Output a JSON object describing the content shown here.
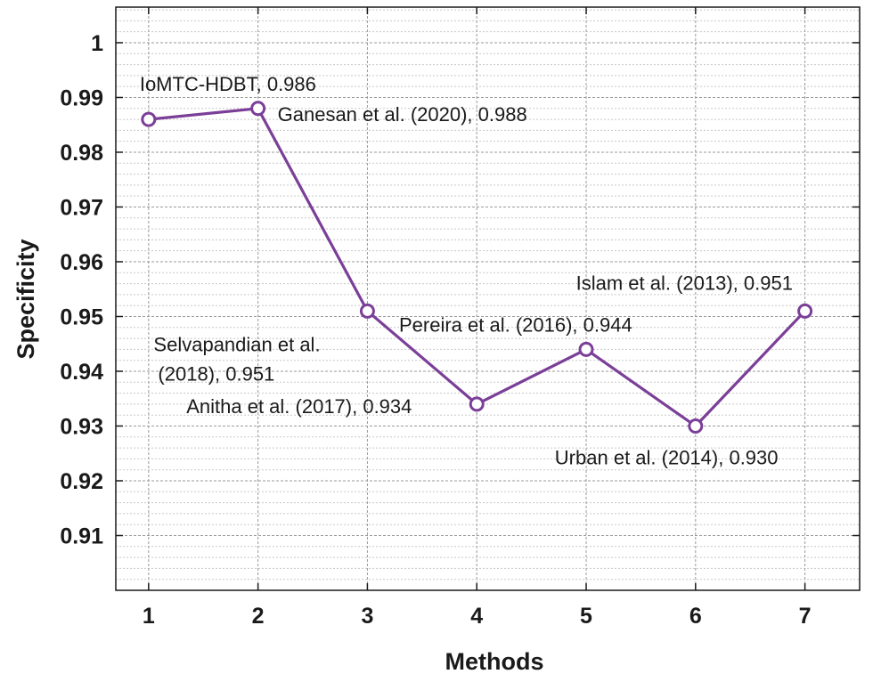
{
  "chart_data": {
    "type": "line",
    "title": "",
    "xlabel": "Methods",
    "ylabel": "Specificity",
    "x": [
      1,
      2,
      3,
      4,
      5,
      6,
      7
    ],
    "xticks": [
      "1",
      "2",
      "3",
      "4",
      "5",
      "6",
      "7"
    ],
    "xlim": [
      0.7,
      7.5
    ],
    "ylim": [
      0.9,
      1.0065
    ],
    "yticks": [
      "0.91",
      "0.92",
      "0.93",
      "0.94",
      "0.95",
      "0.96",
      "0.97",
      "0.98",
      "0.99",
      "1"
    ],
    "grid": true,
    "series": [
      {
        "values": [
          0.986,
          0.988,
          0.951,
          0.934,
          0.944,
          0.93,
          0.951
        ],
        "color": "#7b3f98",
        "marker": "open-circle"
      }
    ],
    "annotations": [
      {
        "lines": [
          "IoMTC-HDBT, 0.986"
        ],
        "x": 1,
        "y": 0.986,
        "position": "above"
      },
      {
        "lines": [
          "Ganesan et al. (2020), 0.988"
        ],
        "x": 2,
        "y": 0.988,
        "position": "right"
      },
      {
        "lines": [
          "Selvapandian et al.",
          "(2018), 0.951"
        ],
        "x": 3,
        "y": 0.951,
        "position": "below-left"
      },
      {
        "lines": [
          "Anitha et al. (2017), 0.934"
        ],
        "x": 4,
        "y": 0.934,
        "position": "left"
      },
      {
        "lines": [
          "Pereira et al. (2016), 0.944"
        ],
        "x": 5,
        "y": 0.944,
        "position": "above"
      },
      {
        "lines": [
          "Urban et al. (2014), 0.930"
        ],
        "x": 6,
        "y": 0.93,
        "position": "below"
      },
      {
        "lines": [
          "Islam et al. (2013), 0.951"
        ],
        "x": 7,
        "y": 0.951,
        "position": "above-left"
      }
    ]
  }
}
